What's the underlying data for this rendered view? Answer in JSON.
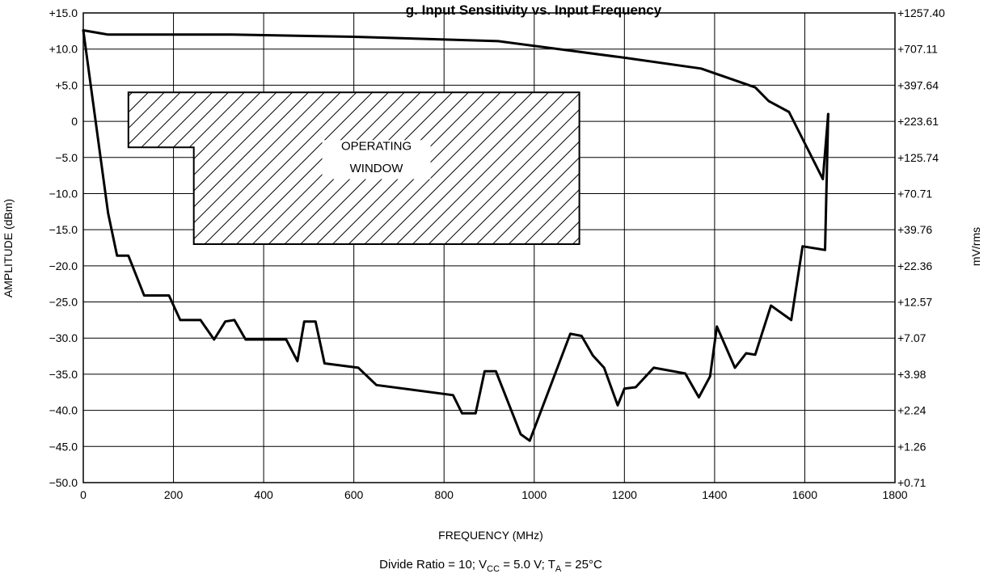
{
  "chart_data": {
    "type": "line",
    "title": "g. Input Sensitivity vs. Input Frequency",
    "xlabel": "FREQUENCY (MHz)",
    "ylabel": "AMPLITUDE (dBm)",
    "y2label": "mV/rms",
    "xlim": [
      0,
      1800
    ],
    "ylim": [
      -50,
      15
    ],
    "x_ticks": [
      0,
      200,
      400,
      600,
      800,
      1000,
      1200,
      1400,
      1600,
      1800
    ],
    "x_tick_labels": [
      "0",
      "200",
      "400",
      "600",
      "800",
      "1000",
      "1200",
      "1400",
      "1600",
      "1800"
    ],
    "y_ticks": [
      15,
      10,
      5,
      0,
      -5,
      -10,
      -15,
      -20,
      -25,
      -30,
      -35,
      -40,
      -45,
      -50
    ],
    "y_tick_labels": [
      "+15.0",
      "+10.0",
      "+5.0",
      "0",
      "−5.0",
      "−10.0",
      "−15.0",
      "−20.0",
      "−25.0",
      "−30.0",
      "−35.0",
      "−40.0",
      "−45.0",
      "−50.0"
    ],
    "y2_tick_labels": [
      "+1257.40",
      "+707.11",
      "+397.64",
      "+223.61",
      "+125.74",
      "+70.71",
      "+39.76",
      "+22.36",
      "+12.57",
      "+7.07",
      "+3.98",
      "+2.24",
      "+1.26",
      "+0.71"
    ],
    "grid": true,
    "series": [
      {
        "role": "upper limit",
        "points": [
          [
            0,
            12.6
          ],
          [
            55,
            12.0
          ],
          [
            330,
            12.0
          ],
          [
            600,
            11.7
          ],
          [
            920,
            11.1
          ],
          [
            1200,
            8.8
          ],
          [
            1370,
            7.3
          ],
          [
            1490,
            4.7
          ],
          [
            1520,
            2.8
          ],
          [
            1565,
            1.3
          ],
          [
            1640,
            -8.0
          ],
          [
            1652,
            1.0
          ]
        ]
      },
      {
        "role": "lower limit",
        "points": [
          [
            0,
            12.6
          ],
          [
            55,
            -12.7
          ],
          [
            75,
            -18.6
          ],
          [
            100,
            -18.6
          ],
          [
            135,
            -24.1
          ],
          [
            190,
            -24.1
          ],
          [
            215,
            -27.5
          ],
          [
            260,
            -27.5
          ],
          [
            290,
            -30.2
          ],
          [
            315,
            -27.7
          ],
          [
            335,
            -27.5
          ],
          [
            360,
            -30.2
          ],
          [
            450,
            -30.2
          ],
          [
            475,
            -33.2
          ],
          [
            490,
            -27.7
          ],
          [
            515,
            -27.7
          ],
          [
            535,
            -33.5
          ],
          [
            610,
            -34.1
          ],
          [
            650,
            -36.5
          ],
          [
            820,
            -37.9
          ],
          [
            840,
            -40.4
          ],
          [
            870,
            -40.4
          ],
          [
            890,
            -34.6
          ],
          [
            915,
            -34.6
          ],
          [
            970,
            -43.3
          ],
          [
            990,
            -44.2
          ],
          [
            1080,
            -29.4
          ],
          [
            1105,
            -29.7
          ],
          [
            1130,
            -32.4
          ],
          [
            1155,
            -34.1
          ],
          [
            1185,
            -39.3
          ],
          [
            1200,
            -37.0
          ],
          [
            1225,
            -36.8
          ],
          [
            1265,
            -34.1
          ],
          [
            1335,
            -34.9
          ],
          [
            1365,
            -38.2
          ],
          [
            1390,
            -35.3
          ],
          [
            1405,
            -28.4
          ],
          [
            1445,
            -34.1
          ],
          [
            1470,
            -32.1
          ],
          [
            1490,
            -32.3
          ],
          [
            1525,
            -25.5
          ],
          [
            1570,
            -27.5
          ],
          [
            1595,
            -17.3
          ],
          [
            1645,
            -17.8
          ],
          [
            1652,
            1.0
          ]
        ]
      }
    ],
    "operating_window": {
      "label_line1": "OPERATING",
      "label_line2": "WINDOW",
      "outline": [
        [
          100,
          4.0
        ],
        [
          1100,
          4.0
        ],
        [
          1100,
          -17.0
        ],
        [
          245,
          -17.0
        ],
        [
          245,
          -3.6
        ],
        [
          100,
          -3.6
        ]
      ]
    },
    "caption": {
      "prefix": "Divide Ratio = 10; V",
      "vcc_sub": "CC",
      "middle": " = 5.0 V; T",
      "ta_sub": "A",
      "suffix": " = 25°C"
    }
  }
}
